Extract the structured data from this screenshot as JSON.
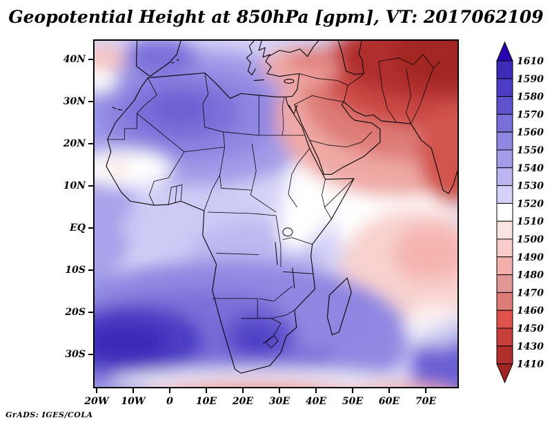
{
  "title": "Geopotential Height at 850hPa [gpm], VT: 2017062109",
  "credit": "GrADS: IGES/COLA",
  "chart_data": {
    "type": "heatmap",
    "title": "Geopotential Height at 850hPa [gpm], VT: 2017062109",
    "variable": "Geopotential Height",
    "level_hPa": 850,
    "units": "gpm",
    "valid_time": "2017062109",
    "map_extent": {
      "lon": [
        -21,
        80
      ],
      "lat": [
        -38.5,
        45
      ]
    },
    "x_ticks": [
      "20W",
      "10W",
      "0",
      "10E",
      "20E",
      "30E",
      "40E",
      "50E",
      "60E",
      "70E"
    ],
    "y_ticks": [
      "40N",
      "30N",
      "20N",
      "10N",
      "EQ",
      "10S",
      "20S",
      "30S"
    ],
    "grid": false,
    "legend_position": "right",
    "colorbar": {
      "orientation": "vertical",
      "labels": [
        "1610",
        "1590",
        "1580",
        "1570",
        "1560",
        "1550",
        "1540",
        "1530",
        "1520",
        "1510",
        "1500",
        "1490",
        "1480",
        "1470",
        "1460",
        "1450",
        "1430",
        "1410"
      ],
      "colors": [
        "#2b00b0",
        "#3d2bb8",
        "#4c3ec4",
        "#5f53cd",
        "#7a6fd9",
        "#9087e1",
        "#a59ce9",
        "#bcb5f0",
        "#d6d2f7",
        "#ffffff",
        "#fbe3e1",
        "#f8ccc9",
        "#f2afab",
        "#e19794",
        "#dd7b76",
        "#df524c",
        "#c73e3a",
        "#b02e2c",
        "#a32522"
      ],
      "high_end_meaning": "high geopotential height (dark blue, above 1610 gpm)",
      "low_end_meaning": "low geopotential height (dark red, below 1410 gpm)"
    },
    "field_summary": [
      {
        "region": "South Atlantic high core (20W-5W, 22S-32S)",
        "approx_gpm": 1600
      },
      {
        "region": "Southern Africa interior core (20E-28E, 24S-30S)",
        "approx_gpm": 1585
      },
      {
        "region": "Northwest Africa / Algeria (5W-10E, 22N-32N)",
        "approx_gpm": 1565
      },
      {
        "region": "Iberia and western Mediterranean",
        "approx_gpm": 1560
      },
      {
        "region": "Equatorial Africa / Gulf of Guinea",
        "approx_gpm": 1535
      },
      {
        "region": "Sahel near Senegal (15W, 15N)",
        "approx_gpm": 1505
      },
      {
        "region": "White band Egypt-Sudan-Kenya into central Indian Ocean",
        "approx_gpm": 1515
      },
      {
        "region": "Arabian Peninsula",
        "approx_gpm": 1470
      },
      {
        "region": "Middle East / Iran / Pakistan (top right)",
        "approx_gpm": 1415
      },
      {
        "region": "Western Indian Ocean (50E-75E, 5S-20S)",
        "approx_gpm": 1500
      },
      {
        "region": "Southern Ocean band along bottom edge",
        "approx_gpm": 1480
      },
      {
        "region": "Southeast corner (70E-80E, 30S-38S)",
        "approx_gpm": 1570
      }
    ]
  },
  "layout_meta": {
    "renderer": "GrADS-style contour fill map"
  }
}
